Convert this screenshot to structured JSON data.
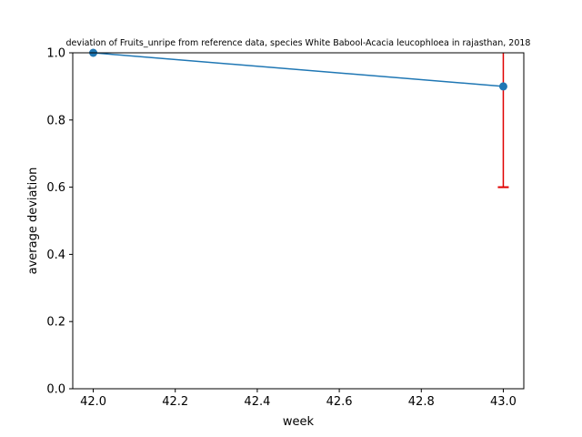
{
  "chart_data": {
    "type": "line",
    "title": "deviation of Fruits_unripe from reference data, species White Babool-Acacia leucophloea in rajasthan, 2018",
    "xlabel": "week",
    "ylabel": "average deviation",
    "xlim": [
      41.95,
      43.05
    ],
    "ylim": [
      0.0,
      1.0
    ],
    "xticks": [
      "42.0",
      "42.2",
      "42.4",
      "42.6",
      "42.8",
      "43.0"
    ],
    "yticks": [
      "0.0",
      "0.2",
      "0.4",
      "0.6",
      "0.8",
      "1.0"
    ],
    "grid": false,
    "series": [
      {
        "x": [
          42.0,
          43.0
        ],
        "y": [
          1.0,
          0.9
        ],
        "color": "#1f77b4",
        "marker": "circle"
      }
    ],
    "error_bars": [
      {
        "x": 43.0,
        "lower": 0.6,
        "upper": 1.2,
        "color": "#e00000"
      }
    ]
  }
}
